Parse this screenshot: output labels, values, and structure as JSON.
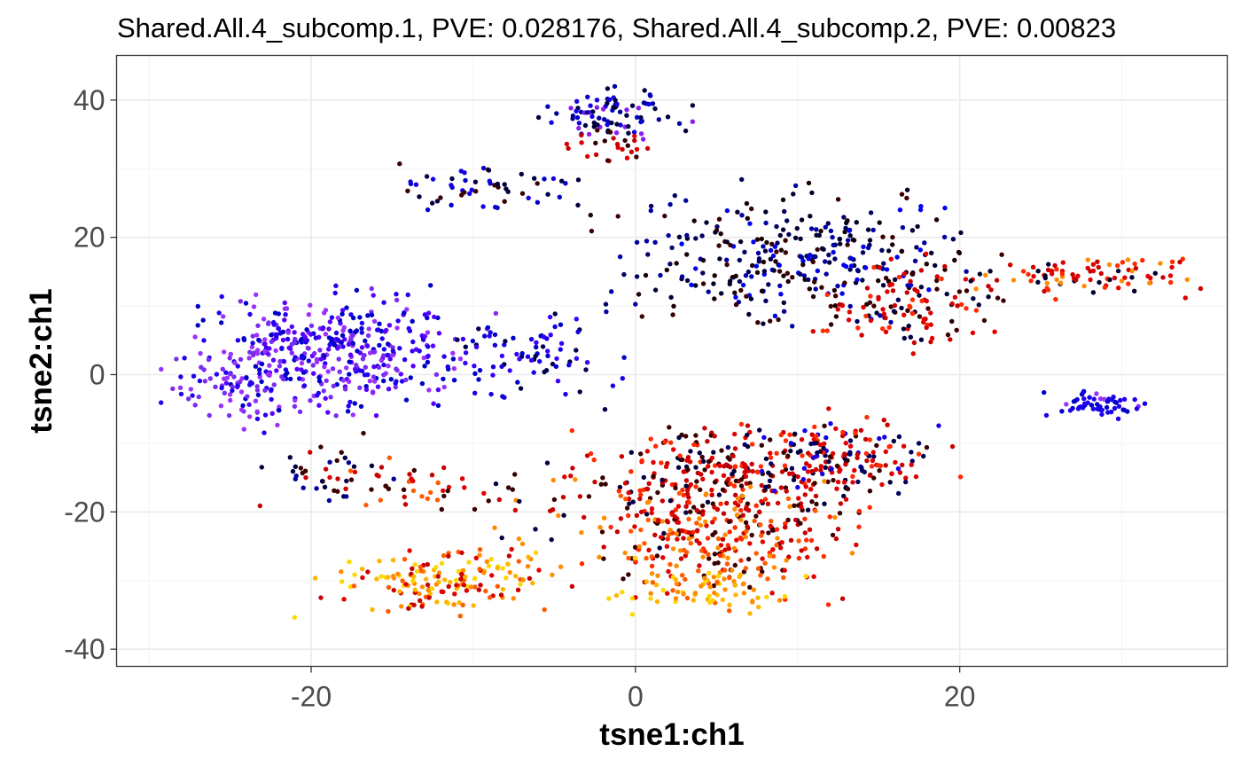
{
  "chart_data": {
    "type": "scatter",
    "title": "Shared.All.4_subcomp.1, PVE: 0.028176, Shared.All.4_subcomp.2, PVE: 0.00823",
    "xlabel": "tsne1:ch1",
    "ylabel": "tsne2:ch1",
    "xlim": [
      -32,
      36.5
    ],
    "ylim": [
      -42.5,
      46.5
    ],
    "x_ticks": [
      -20,
      0,
      20
    ],
    "x_tick_labels": [
      "-20",
      "0",
      "20"
    ],
    "y_ticks": [
      -40,
      -20,
      0,
      20,
      40
    ],
    "y_tick_labels": [
      "-40",
      "-20",
      "0",
      "20",
      "40"
    ],
    "grid": true,
    "legend": "none",
    "color_scale": [
      "#ffd700",
      "#ff8c00",
      "#ff2a00",
      "#c80000",
      "#3a0000",
      "#000040",
      "#0000a0",
      "#0000ff",
      "#9b30ff"
    ],
    "clusters": [
      {
        "center": [
          -19,
          3
        ],
        "spread": [
          4.2,
          4.5
        ],
        "n": 420,
        "palette": [
          "#2200ee",
          "#5a00ff",
          "#9b30ff",
          "#0000c8",
          "#7a2cf0"
        ],
        "seed": 11
      },
      {
        "center": [
          -24.5,
          -2
        ],
        "spread": [
          2.2,
          3
        ],
        "n": 70,
        "palette": [
          "#9b30ff",
          "#7a2cf0",
          "#2200ee"
        ],
        "seed": 12
      },
      {
        "center": [
          -7,
          3
        ],
        "spread": [
          3,
          3.5
        ],
        "n": 90,
        "palette": [
          "#1500e6",
          "#0000c8",
          "#3a00ff",
          "#000050"
        ],
        "seed": 13
      },
      {
        "center": [
          -1.5,
          38
        ],
        "spread": [
          2.2,
          1.8
        ],
        "n": 85,
        "palette": [
          "#0000c8",
          "#0000a0",
          "#000040",
          "#1500e6",
          "#8a1cf0"
        ],
        "seed": 14
      },
      {
        "center": [
          -1.5,
          33.5
        ],
        "spread": [
          1.8,
          1.2
        ],
        "n": 25,
        "palette": [
          "#c80000",
          "#3a0000",
          "#e00000"
        ],
        "seed": 15
      },
      {
        "center": [
          -9,
          27
        ],
        "spread": [
          3.5,
          2
        ],
        "n": 55,
        "palette": [
          "#0000c8",
          "#000040",
          "#3a0000",
          "#1500e6"
        ],
        "seed": 16
      },
      {
        "center": [
          10,
          17
        ],
        "spread": [
          5.5,
          5
        ],
        "n": 330,
        "palette": [
          "#000060",
          "#0000a0",
          "#0000ee",
          "#000030",
          "#1a0000",
          "#3a0000"
        ],
        "seed": 17
      },
      {
        "center": [
          17,
          10
        ],
        "spread": [
          3,
          3.5
        ],
        "n": 110,
        "palette": [
          "#3a0000",
          "#c80000",
          "#e00000",
          "#000040",
          "#ff2a00"
        ],
        "seed": 18
      },
      {
        "center": [
          28,
          14.5
        ],
        "spread": [
          3.5,
          1.5
        ],
        "n": 90,
        "palette": [
          "#e00000",
          "#ff2a00",
          "#c80000",
          "#000030",
          "#ff8c00"
        ],
        "seed": 19
      },
      {
        "center": [
          29,
          -4.5
        ],
        "spread": [
          1.8,
          0.9
        ],
        "n": 55,
        "palette": [
          "#1500e6",
          "#0000c8",
          "#2200ee",
          "#9b30ff"
        ],
        "seed": 20
      },
      {
        "center": [
          6,
          -15
        ],
        "spread": [
          5,
          4
        ],
        "n": 330,
        "palette": [
          "#c80000",
          "#3a0000",
          "#000040",
          "#e00000",
          "#ff2a00"
        ],
        "seed": 21
      },
      {
        "center": [
          13,
          -12
        ],
        "spread": [
          3.5,
          3
        ],
        "n": 140,
        "palette": [
          "#3a0000",
          "#c80000",
          "#000060",
          "#e00000",
          "#1500e6",
          "#ff2a00"
        ],
        "seed": 22
      },
      {
        "center": [
          5,
          -25
        ],
        "spread": [
          4,
          4
        ],
        "n": 230,
        "palette": [
          "#ff2a00",
          "#ff5a00",
          "#ff8c00",
          "#e00000",
          "#c80000",
          "#3a0000"
        ],
        "seed": 23
      },
      {
        "center": [
          4,
          -31
        ],
        "spread": [
          3,
          2
        ],
        "n": 80,
        "palette": [
          "#ffb400",
          "#ffd700",
          "#ff8c00",
          "#ff5a00"
        ],
        "seed": 24
      },
      {
        "center": [
          -12,
          -30
        ],
        "spread": [
          3.5,
          2.5
        ],
        "n": 160,
        "palette": [
          "#ffd700",
          "#ffb400",
          "#ff8c00",
          "#ff5a00",
          "#e00000",
          "#c80000"
        ],
        "seed": 25
      },
      {
        "center": [
          -13,
          -17
        ],
        "spread": [
          3,
          2
        ],
        "n": 45,
        "palette": [
          "#e00000",
          "#c80000",
          "#3a0000",
          "#ff5a00"
        ],
        "seed": 26
      },
      {
        "center": [
          -19,
          -14
        ],
        "spread": [
          2,
          2.5
        ],
        "n": 35,
        "palette": [
          "#000040",
          "#0000a0",
          "#3a0000",
          "#c80000"
        ],
        "seed": 27
      },
      {
        "center": [
          -4,
          -22
        ],
        "spread": [
          4,
          4
        ],
        "n": 35,
        "palette": [
          "#ff8c00",
          "#c80000",
          "#000040",
          "#e00000"
        ],
        "seed": 28
      }
    ]
  }
}
